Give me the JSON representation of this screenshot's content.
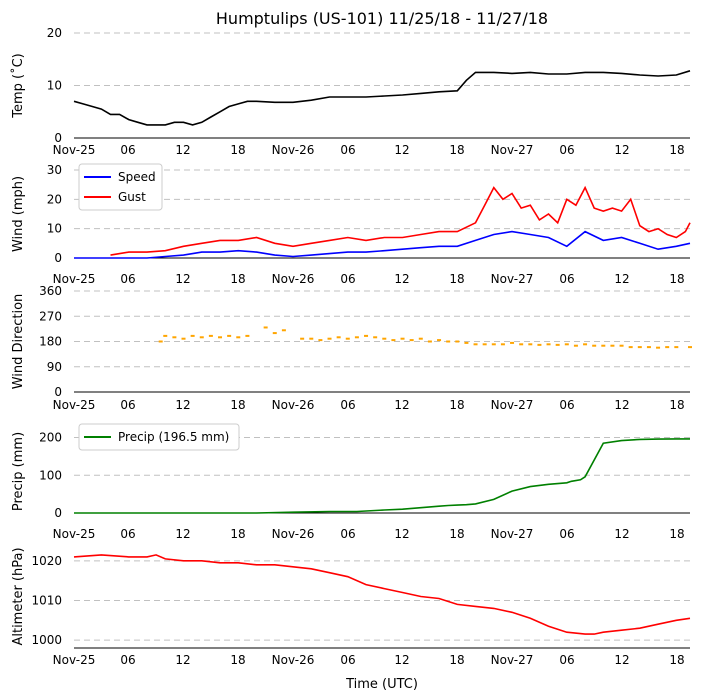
{
  "title": "Humptulips (US-101) 11/25/18 - 11/27/18",
  "xlabel": "Time (UTC)",
  "x_tick_labels": [
    "Nov-25",
    "06",
    "12",
    "18",
    "Nov-26",
    "06",
    "12",
    "18",
    "Nov-27",
    "06",
    "12",
    "18"
  ],
  "colors": {
    "temp": "#000000",
    "speed": "#0000ff",
    "gust": "#ff0000",
    "direction": "#ffa500",
    "precip": "#008000",
    "altimeter": "#ff0000",
    "grid": "#c0c0c0"
  },
  "chart_data": [
    {
      "type": "line",
      "panel": "temp",
      "ylabel": "Temp ($^\\circ$C)",
      "ylabel_text": "Temp (˚C)",
      "ylim": [
        0,
        20
      ],
      "yticks": [
        "0",
        "10",
        "20"
      ],
      "xlim": [
        0,
        67.5
      ],
      "series": [
        {
          "name": "Temp",
          "color": "#000000",
          "x": [
            0,
            1,
            2,
            3,
            4,
            5,
            6,
            7,
            8,
            9,
            10,
            11,
            12,
            13,
            14,
            15,
            16,
            17,
            18,
            19,
            20,
            22,
            24,
            26,
            28,
            30,
            32,
            34,
            36,
            38,
            40,
            42,
            43,
            44,
            46,
            48,
            50,
            52,
            54,
            56,
            58,
            60,
            62,
            64,
            66,
            67.5
          ],
          "y": [
            7,
            6.5,
            6,
            5.5,
            4.5,
            4.5,
            3.5,
            3,
            2.5,
            2.5,
            2.5,
            3,
            3,
            2.5,
            3,
            4,
            5,
            6,
            6.5,
            7,
            7,
            6.8,
            6.8,
            7.2,
            7.8,
            7.8,
            7.8,
            8,
            8.2,
            8.5,
            8.8,
            9,
            11,
            12.5,
            12.5,
            12.3,
            12.5,
            12.2,
            12.2,
            12.5,
            12.5,
            12.3,
            12,
            11.8,
            12,
            12.8
          ]
        }
      ]
    },
    {
      "type": "line",
      "panel": "wind",
      "ylabel": "Wind (mph)",
      "ylim": [
        0,
        30
      ],
      "yticks": [
        "0",
        "10",
        "20",
        "30"
      ],
      "xlim": [
        0,
        67.5
      ],
      "legend": [
        "Speed",
        "Gust"
      ],
      "series": [
        {
          "name": "Speed",
          "color": "#0000ff",
          "x": [
            0,
            4,
            8,
            10,
            12,
            14,
            16,
            18,
            20,
            22,
            24,
            26,
            28,
            30,
            32,
            34,
            36,
            38,
            40,
            42,
            44,
            46,
            48,
            50,
            52,
            54,
            56,
            58,
            60,
            62,
            64,
            66,
            67.5
          ],
          "y": [
            0,
            0,
            0,
            0.5,
            1,
            2,
            2,
            2.5,
            2,
            1,
            0.5,
            1,
            1.5,
            2,
            2,
            2.5,
            3,
            3.5,
            4,
            4,
            6,
            8,
            9,
            8,
            7,
            4,
            9,
            6,
            7,
            5,
            3,
            4,
            5
          ]
        },
        {
          "name": "Gust",
          "color": "#ff0000",
          "x": [
            4,
            6,
            8,
            10,
            12,
            14,
            16,
            18,
            20,
            22,
            24,
            26,
            28,
            30,
            32,
            34,
            36,
            38,
            40,
            42,
            44,
            45,
            46,
            47,
            48,
            49,
            50,
            51,
            52,
            53,
            54,
            55,
            56,
            57,
            58,
            59,
            60,
            61,
            62,
            63,
            64,
            65,
            66,
            67,
            67.5
          ],
          "y": [
            1,
            2,
            2,
            2.5,
            4,
            5,
            6,
            6,
            7,
            5,
            4,
            5,
            6,
            7,
            6,
            7,
            7,
            8,
            9,
            9,
            12,
            18,
            24,
            20,
            22,
            17,
            18,
            13,
            15,
            12,
            20,
            18,
            24,
            17,
            16,
            17,
            16,
            20,
            11,
            9,
            10,
            8,
            7,
            9,
            12
          ]
        }
      ]
    },
    {
      "type": "scatter",
      "panel": "direction",
      "ylabel": "Wind Direction",
      "ylim": [
        0,
        360
      ],
      "yticks": [
        "0",
        "90",
        "180",
        "270",
        "360"
      ],
      "xlim": [
        0,
        67.5
      ],
      "series": [
        {
          "name": "Direction",
          "color": "#ffa500",
          "x": [
            9.5,
            10,
            11,
            12,
            13,
            14,
            15,
            16,
            17,
            18,
            19,
            21,
            22,
            23,
            25,
            26,
            27,
            28,
            29,
            30,
            31,
            32,
            33,
            34,
            35,
            36,
            37,
            38,
            39,
            40,
            41,
            42,
            43,
            44,
            45,
            46,
            47,
            48,
            49,
            50,
            51,
            52,
            53,
            54,
            55,
            56,
            57,
            58,
            59,
            60,
            61,
            62,
            63,
            64,
            65,
            66,
            67.5
          ],
          "y": [
            180,
            200,
            195,
            190,
            200,
            195,
            200,
            195,
            200,
            195,
            200,
            230,
            210,
            220,
            190,
            190,
            185,
            190,
            195,
            190,
            195,
            200,
            195,
            190,
            185,
            190,
            185,
            190,
            180,
            185,
            180,
            180,
            175,
            170,
            170,
            170,
            170,
            175,
            170,
            170,
            168,
            170,
            168,
            170,
            165,
            170,
            165,
            165,
            165,
            165,
            160,
            160,
            160,
            158,
            160,
            160,
            160
          ]
        }
      ]
    },
    {
      "type": "line",
      "panel": "precip",
      "ylabel": "Precip (mm)",
      "ylim": [
        0,
        220
      ],
      "yticks": [
        "0",
        "100",
        "200"
      ],
      "xlim": [
        0,
        67.5
      ],
      "legend": [
        "Precip (196.5 mm)"
      ],
      "series": [
        {
          "name": "Precip (196.5 mm)",
          "color": "#008000",
          "x": [
            0,
            20,
            24,
            28,
            31,
            34,
            36,
            38,
            40,
            41,
            42,
            43,
            44,
            46,
            48,
            50,
            52,
            54,
            54.5,
            55.5,
            56,
            58,
            60,
            62,
            64,
            66,
            67.5
          ],
          "y": [
            0,
            0,
            2,
            4,
            4,
            8,
            10,
            14,
            18,
            20,
            21,
            22,
            24,
            36,
            58,
            70,
            76,
            80,
            84,
            88,
            96,
            185,
            192,
            195,
            196,
            196.5,
            196.5
          ]
        }
      ]
    },
    {
      "type": "line",
      "panel": "altimeter",
      "ylabel": "Altimeter (hPa)",
      "ylim": [
        998,
        1024
      ],
      "yticks": [
        "1000",
        "1010",
        "1020"
      ],
      "xlim": [
        0,
        67.5
      ],
      "series": [
        {
          "name": "Altimeter",
          "color": "#ff0000",
          "x": [
            0,
            3,
            6,
            8,
            9,
            10,
            12,
            14,
            16,
            18,
            20,
            22,
            24,
            26,
            28,
            30,
            32,
            34,
            36,
            38,
            40,
            42,
            44,
            46,
            48,
            50,
            52,
            54,
            56,
            57,
            58,
            60,
            62,
            64,
            66,
            67.5
          ],
          "y": [
            1021,
            1021.5,
            1021,
            1021,
            1021.5,
            1020.5,
            1020,
            1020,
            1019.5,
            1019.5,
            1019,
            1019,
            1018.5,
            1018,
            1017,
            1016,
            1014,
            1013,
            1012,
            1011,
            1010.5,
            1009,
            1008.5,
            1008,
            1007,
            1005.5,
            1003.5,
            1002,
            1001.5,
            1001.5,
            1002,
            1002.5,
            1003,
            1004,
            1005,
            1005.5
          ]
        }
      ]
    }
  ]
}
